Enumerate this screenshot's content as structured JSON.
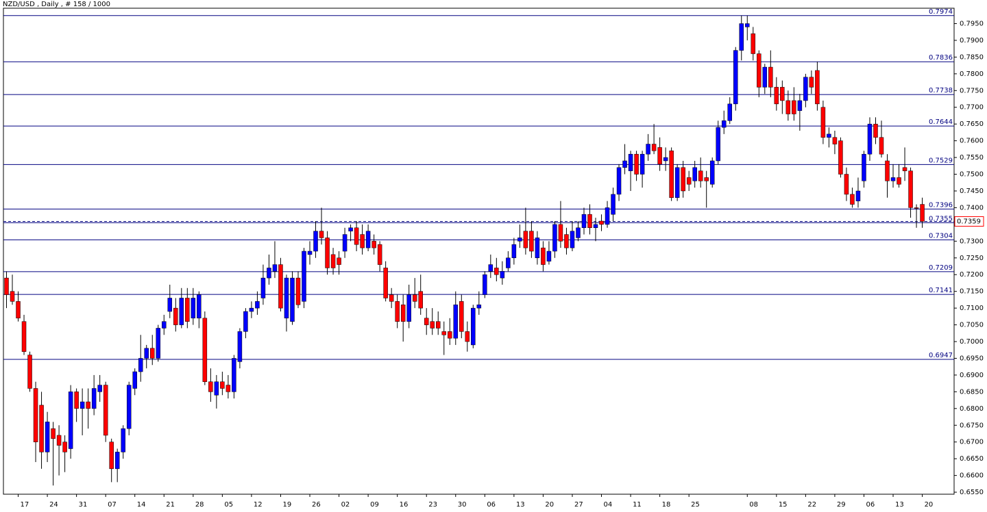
{
  "chart_data": {
    "type": "candlestick",
    "title": "NZD/USD , Daily , # 158 / 1000",
    "up_color": "#0000ff",
    "down_color": "#ff0000",
    "wick_color": "#000000",
    "level_color": "#000080",
    "ylim": [
      0.6544,
      0.7996
    ],
    "yticks": [
      {
        "value": 0.655,
        "label": "0.6550"
      },
      {
        "value": 0.66,
        "label": "0.6600"
      },
      {
        "value": 0.665,
        "label": "0.6650"
      },
      {
        "value": 0.67,
        "label": "0.6700"
      },
      {
        "value": 0.675,
        "label": "0.6750"
      },
      {
        "value": 0.68,
        "label": "0.6800"
      },
      {
        "value": 0.685,
        "label": "0.6850"
      },
      {
        "value": 0.69,
        "label": "0.6900"
      },
      {
        "value": 0.695,
        "label": "0.6950"
      },
      {
        "value": 0.7,
        "label": "0.7000"
      },
      {
        "value": 0.705,
        "label": "0.7050"
      },
      {
        "value": 0.71,
        "label": "0.7100"
      },
      {
        "value": 0.715,
        "label": "0.7150"
      },
      {
        "value": 0.72,
        "label": "0.7200"
      },
      {
        "value": 0.725,
        "label": "0.7250"
      },
      {
        "value": 0.73,
        "label": "0.7300"
      },
      {
        "value": 0.735,
        "label": "0.7350"
      },
      {
        "value": 0.74,
        "label": "0.7400"
      },
      {
        "value": 0.745,
        "label": "0.7450"
      },
      {
        "value": 0.75,
        "label": "0.7500"
      },
      {
        "value": 0.755,
        "label": "0.7550"
      },
      {
        "value": 0.76,
        "label": "0.7600"
      },
      {
        "value": 0.765,
        "label": "0.7650"
      },
      {
        "value": 0.77,
        "label": "0.7700"
      },
      {
        "value": 0.775,
        "label": "0.7750"
      },
      {
        "value": 0.78,
        "label": "0.7800"
      },
      {
        "value": 0.785,
        "label": "0.7850"
      },
      {
        "value": 0.79,
        "label": "0.7900"
      },
      {
        "value": 0.795,
        "label": "0.7950"
      }
    ],
    "levels": [
      0.7974,
      0.7836,
      0.7738,
      0.7644,
      0.7529,
      0.7396,
      0.7355,
      0.7304,
      0.7209,
      0.7141,
      0.6947
    ],
    "last_price": 0.7359,
    "categories": [
      null,
      null,
      "17",
      null,
      null,
      null,
      null,
      "24",
      null,
      null,
      null,
      null,
      "31",
      null,
      null,
      null,
      null,
      "07",
      null,
      null,
      null,
      null,
      "14",
      null,
      null,
      null,
      null,
      "21",
      null,
      null,
      null,
      null,
      "28",
      null,
      null,
      null,
      null,
      "05",
      null,
      null,
      null,
      null,
      "12",
      null,
      null,
      null,
      null,
      "19",
      null,
      null,
      null,
      null,
      "26",
      null,
      null,
      null,
      null,
      "02",
      null,
      null,
      null,
      null,
      "09",
      null,
      null,
      null,
      null,
      "16",
      null,
      null,
      null,
      null,
      "23",
      null,
      null,
      null,
      null,
      "30",
      null,
      null,
      null,
      null,
      "06",
      null,
      null,
      null,
      null,
      "13",
      null,
      null,
      null,
      null,
      "20",
      null,
      null,
      null,
      null,
      "27",
      null,
      null,
      null,
      null,
      "04",
      null,
      null,
      null,
      null,
      "11",
      null,
      null,
      null,
      null,
      "18",
      null,
      null,
      null,
      null,
      "25",
      null,
      null,
      null,
      null,
      null,
      null,
      null,
      null,
      null,
      "08",
      null,
      null,
      null,
      null,
      "15",
      null,
      null,
      null,
      null,
      "22",
      null,
      null,
      null,
      null,
      "29",
      null,
      null,
      null,
      null,
      "06",
      null,
      null,
      null,
      null,
      "13",
      null,
      null,
      null,
      null,
      "20"
    ],
    "candles": [
      [
        0.719,
        0.721,
        0.71,
        0.714
      ],
      [
        0.715,
        0.72,
        0.711,
        0.712
      ],
      [
        0.712,
        0.715,
        0.706,
        0.707
      ],
      [
        0.706,
        0.708,
        0.696,
        0.697
      ],
      [
        0.696,
        0.697,
        0.685,
        0.686
      ],
      [
        0.686,
        0.688,
        0.664,
        0.67
      ],
      [
        0.681,
        0.685,
        0.662,
        0.667
      ],
      [
        0.667,
        0.679,
        0.664,
        0.676
      ],
      [
        0.674,
        0.676,
        0.657,
        0.671
      ],
      [
        0.672,
        0.675,
        0.66,
        0.669
      ],
      [
        0.67,
        0.672,
        0.661,
        0.667
      ],
      [
        0.668,
        0.687,
        0.665,
        0.685
      ],
      [
        0.685,
        0.686,
        0.676,
        0.68
      ],
      [
        0.68,
        0.686,
        0.672,
        0.682
      ],
      [
        0.682,
        0.686,
        0.674,
        0.68
      ],
      [
        0.68,
        0.69,
        0.678,
        0.686
      ],
      [
        0.685,
        0.69,
        0.682,
        0.687
      ],
      [
        0.687,
        0.688,
        0.67,
        0.672
      ],
      [
        0.67,
        0.671,
        0.658,
        0.662
      ],
      [
        0.662,
        0.668,
        0.658,
        0.667
      ],
      [
        0.667,
        0.675,
        0.665,
        0.674
      ],
      [
        0.674,
        0.688,
        0.672,
        0.687
      ],
      [
        0.686,
        0.692,
        0.684,
        0.691
      ],
      [
        0.691,
        0.702,
        0.688,
        0.695
      ],
      [
        0.695,
        0.699,
        0.692,
        0.698
      ],
      [
        0.698,
        0.702,
        0.693,
        0.695
      ],
      [
        0.695,
        0.705,
        0.694,
        0.704
      ],
      [
        0.704,
        0.708,
        0.702,
        0.706
      ],
      [
        0.709,
        0.717,
        0.707,
        0.713
      ],
      [
        0.71,
        0.713,
        0.703,
        0.705
      ],
      [
        0.705,
        0.716,
        0.704,
        0.713
      ],
      [
        0.713,
        0.716,
        0.704,
        0.706
      ],
      [
        0.707,
        0.716,
        0.705,
        0.713
      ],
      [
        0.707,
        0.715,
        0.704,
        0.714
      ],
      [
        0.707,
        0.709,
        0.687,
        0.688
      ],
      [
        0.688,
        0.692,
        0.682,
        0.685
      ],
      [
        0.684,
        0.69,
        0.68,
        0.688
      ],
      [
        0.688,
        0.691,
        0.684,
        0.686
      ],
      [
        0.687,
        0.69,
        0.683,
        0.685
      ],
      [
        0.685,
        0.696,
        0.683,
        0.695
      ],
      [
        0.694,
        0.704,
        0.692,
        0.703
      ],
      [
        0.703,
        0.71,
        0.701,
        0.709
      ],
      [
        0.709,
        0.712,
        0.707,
        0.71
      ],
      [
        0.71,
        0.715,
        0.708,
        0.712
      ],
      [
        0.713,
        0.723,
        0.711,
        0.719
      ],
      [
        0.719,
        0.726,
        0.717,
        0.722
      ],
      [
        0.721,
        0.73,
        0.719,
        0.723
      ],
      [
        0.723,
        0.725,
        0.709,
        0.71
      ],
      [
        0.707,
        0.72,
        0.703,
        0.719
      ],
      [
        0.706,
        0.721,
        0.705,
        0.719
      ],
      [
        0.719,
        0.721,
        0.71,
        0.711
      ],
      [
        0.712,
        0.728,
        0.71,
        0.727
      ],
      [
        0.726,
        0.73,
        0.723,
        0.727
      ],
      [
        0.727,
        0.736,
        0.725,
        0.733
      ],
      [
        0.733,
        0.74,
        0.729,
        0.731
      ],
      [
        0.731,
        0.733,
        0.72,
        0.722
      ],
      [
        0.726,
        0.728,
        0.72,
        0.722
      ],
      [
        0.725,
        0.727,
        0.72,
        0.723
      ],
      [
        0.727,
        0.734,
        0.725,
        0.732
      ],
      [
        0.733,
        0.735,
        0.73,
        0.734
      ],
      [
        0.734,
        0.736,
        0.727,
        0.729
      ],
      [
        0.732,
        0.735,
        0.726,
        0.728
      ],
      [
        0.728,
        0.735,
        0.727,
        0.733
      ],
      [
        0.73,
        0.732,
        0.726,
        0.728
      ],
      [
        0.729,
        0.73,
        0.721,
        0.723
      ],
      [
        0.722,
        0.724,
        0.712,
        0.713
      ],
      [
        0.714,
        0.716,
        0.71,
        0.712
      ],
      [
        0.712,
        0.714,
        0.704,
        0.706
      ],
      [
        0.711,
        0.714,
        0.7,
        0.706
      ],
      [
        0.706,
        0.717,
        0.704,
        0.714
      ],
      [
        0.714,
        0.719,
        0.71,
        0.712
      ],
      [
        0.715,
        0.72,
        0.708,
        0.71
      ],
      [
        0.707,
        0.71,
        0.702,
        0.705
      ],
      [
        0.706,
        0.71,
        0.702,
        0.704
      ],
      [
        0.706,
        0.709,
        0.702,
        0.704
      ],
      [
        0.703,
        0.706,
        0.696,
        0.702
      ],
      [
        0.703,
        0.707,
        0.699,
        0.701
      ],
      [
        0.701,
        0.715,
        0.699,
        0.711
      ],
      [
        0.712,
        0.714,
        0.701,
        0.703
      ],
      [
        0.703,
        0.706,
        0.697,
        0.7
      ],
      [
        0.699,
        0.711,
        0.698,
        0.71
      ],
      [
        0.71,
        0.715,
        0.708,
        0.711
      ],
      [
        0.714,
        0.721,
        0.713,
        0.72
      ],
      [
        0.721,
        0.726,
        0.719,
        0.723
      ],
      [
        0.722,
        0.725,
        0.718,
        0.72
      ],
      [
        0.719,
        0.724,
        0.717,
        0.721
      ],
      [
        0.722,
        0.727,
        0.721,
        0.725
      ],
      [
        0.725,
        0.731,
        0.723,
        0.729
      ],
      [
        0.73,
        0.735,
        0.728,
        0.731
      ],
      [
        0.733,
        0.74,
        0.726,
        0.728
      ],
      [
        0.733,
        0.736,
        0.725,
        0.727
      ],
      [
        0.725,
        0.733,
        0.723,
        0.731
      ],
      [
        0.728,
        0.73,
        0.721,
        0.723
      ],
      [
        0.724,
        0.73,
        0.723,
        0.727
      ],
      [
        0.727,
        0.736,
        0.725,
        0.735
      ],
      [
        0.735,
        0.742,
        0.728,
        0.73
      ],
      [
        0.732,
        0.734,
        0.726,
        0.728
      ],
      [
        0.728,
        0.736,
        0.727,
        0.733
      ],
      [
        0.731,
        0.736,
        0.73,
        0.734
      ],
      [
        0.734,
        0.74,
        0.732,
        0.738
      ],
      [
        0.738,
        0.741,
        0.732,
        0.734
      ],
      [
        0.734,
        0.737,
        0.73,
        0.735
      ],
      [
        0.736,
        0.738,
        0.733,
        0.735
      ],
      [
        0.735,
        0.742,
        0.734,
        0.74
      ],
      [
        0.738,
        0.746,
        0.736,
        0.744
      ],
      [
        0.744,
        0.753,
        0.742,
        0.752
      ],
      [
        0.752,
        0.759,
        0.75,
        0.754
      ],
      [
        0.751,
        0.757,
        0.745,
        0.756
      ],
      [
        0.756,
        0.757,
        0.748,
        0.75
      ],
      [
        0.75,
        0.757,
        0.746,
        0.756
      ],
      [
        0.756,
        0.762,
        0.754,
        0.759
      ],
      [
        0.759,
        0.765,
        0.756,
        0.757
      ],
      [
        0.758,
        0.761,
        0.751,
        0.753
      ],
      [
        0.754,
        0.758,
        0.751,
        0.755
      ],
      [
        0.757,
        0.758,
        0.742,
        0.743
      ],
      [
        0.743,
        0.753,
        0.742,
        0.752
      ],
      [
        0.752,
        0.754,
        0.743,
        0.745
      ],
      [
        0.749,
        0.751,
        0.745,
        0.747
      ],
      [
        0.748,
        0.754,
        0.746,
        0.752
      ],
      [
        0.751,
        0.755,
        0.746,
        0.748
      ],
      [
        0.749,
        0.751,
        0.74,
        0.748
      ],
      [
        0.747,
        0.755,
        0.746,
        0.754
      ],
      [
        0.754,
        0.766,
        0.753,
        0.764
      ],
      [
        0.764,
        0.769,
        0.762,
        0.766
      ],
      [
        0.766,
        0.773,
        0.765,
        0.771
      ],
      [
        0.771,
        0.788,
        0.769,
        0.787
      ],
      [
        0.787,
        0.7974,
        0.784,
        0.795
      ],
      [
        0.794,
        0.7974,
        0.79,
        0.795
      ],
      [
        0.792,
        0.794,
        0.784,
        0.786
      ],
      [
        0.786,
        0.787,
        0.773,
        0.776
      ],
      [
        0.776,
        0.783,
        0.774,
        0.782
      ],
      [
        0.782,
        0.787,
        0.773,
        0.776
      ],
      [
        0.776,
        0.779,
        0.769,
        0.771
      ],
      [
        0.776,
        0.778,
        0.768,
        0.772
      ],
      [
        0.772,
        0.775,
        0.766,
        0.768
      ],
      [
        0.772,
        0.776,
        0.766,
        0.768
      ],
      [
        0.769,
        0.774,
        0.763,
        0.772
      ],
      [
        0.772,
        0.78,
        0.77,
        0.779
      ],
      [
        0.779,
        0.781,
        0.774,
        0.776
      ],
      [
        0.781,
        0.7836,
        0.769,
        0.771
      ],
      [
        0.77,
        0.772,
        0.759,
        0.761
      ],
      [
        0.761,
        0.764,
        0.758,
        0.762
      ],
      [
        0.761,
        0.763,
        0.756,
        0.759
      ],
      [
        0.76,
        0.761,
        0.749,
        0.75
      ],
      [
        0.75,
        0.752,
        0.742,
        0.744
      ],
      [
        0.744,
        0.746,
        0.74,
        0.741
      ],
      [
        0.742,
        0.749,
        0.74,
        0.745
      ],
      [
        0.748,
        0.757,
        0.746,
        0.756
      ],
      [
        0.756,
        0.767,
        0.754,
        0.765
      ],
      [
        0.765,
        0.767,
        0.759,
        0.761
      ],
      [
        0.761,
        0.766,
        0.755,
        0.756
      ],
      [
        0.754,
        0.756,
        0.743,
        0.748
      ],
      [
        0.748,
        0.753,
        0.746,
        0.749
      ],
      [
        0.749,
        0.753,
        0.746,
        0.747
      ],
      [
        0.752,
        0.758,
        0.748,
        0.751
      ],
      [
        0.751,
        0.752,
        0.737,
        0.74
      ],
      [
        0.74,
        0.741,
        0.734,
        0.74
      ],
      [
        0.741,
        0.743,
        0.734,
        0.7359
      ]
    ]
  }
}
